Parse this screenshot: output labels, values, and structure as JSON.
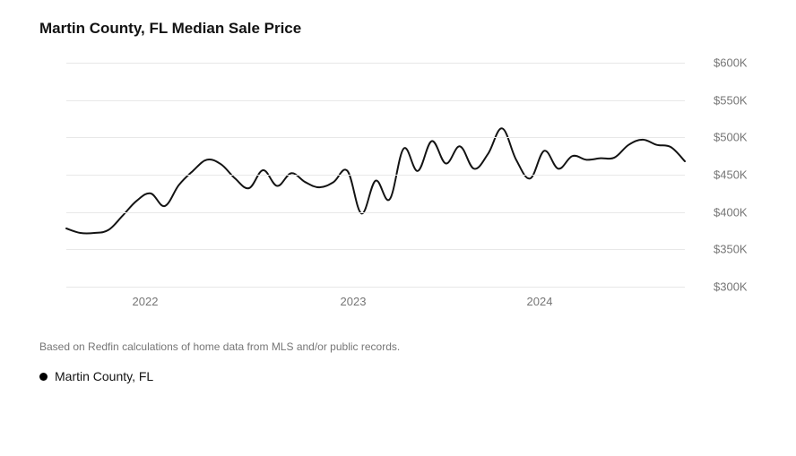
{
  "title": "Martin County, FL Median Sale Price",
  "footnote": "Based on Redfin calculations of home data from MLS and/or public records.",
  "legend": {
    "label": "Martin County, FL",
    "color": "#000000"
  },
  "chart": {
    "type": "line",
    "background_color": "#ffffff",
    "grid_color": "#e8e8e8",
    "axis_label_color": "#767676",
    "axis_font_size": 13,
    "line_color": "#131313",
    "line_width": 2,
    "y": {
      "min": 300,
      "max": 600,
      "tick_step": 50,
      "ticks": [
        {
          "v": 600,
          "label": "$600K"
        },
        {
          "v": 550,
          "label": "$550K"
        },
        {
          "v": 500,
          "label": "$500K"
        },
        {
          "v": 450,
          "label": "$450K"
        },
        {
          "v": 400,
          "label": "$400K"
        },
        {
          "v": 350,
          "label": "$350K"
        },
        {
          "v": 300,
          "label": "$300K"
        }
      ]
    },
    "x": {
      "min": 0,
      "max": 44,
      "ticks": [
        {
          "v": 5.5,
          "label": "2022"
        },
        {
          "v": 20,
          "label": "2023"
        },
        {
          "v": 33,
          "label": "2024"
        }
      ]
    },
    "series": {
      "name": "Martin County, FL",
      "values": [
        378,
        372,
        372,
        376,
        395,
        415,
        425,
        408,
        436,
        455,
        470,
        464,
        445,
        432,
        456,
        435,
        452,
        440,
        433,
        440,
        455,
        398,
        442,
        417,
        485,
        455,
        495,
        465,
        488,
        458,
        478,
        512,
        470,
        445,
        482,
        458,
        475,
        470,
        472,
        473,
        490,
        497,
        490,
        487,
        468
      ]
    }
  }
}
